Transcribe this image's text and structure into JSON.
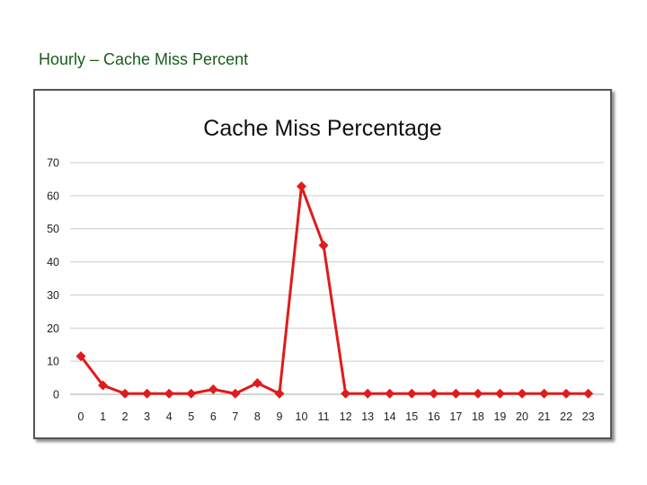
{
  "slide": {
    "title": "Hourly – Cache Miss Percent"
  },
  "colors": {
    "series": "#e01b1b",
    "grid": "#cccccc",
    "title_green": "#1a5c1a"
  },
  "chart_data": {
    "type": "line",
    "title": "Cache Miss Percentage",
    "xlabel": "",
    "ylabel": "",
    "x": [
      0,
      1,
      2,
      3,
      4,
      5,
      6,
      7,
      8,
      9,
      10,
      11,
      12,
      13,
      14,
      15,
      16,
      17,
      18,
      19,
      20,
      21,
      22,
      23
    ],
    "categories": [
      "0",
      "1",
      "2",
      "3",
      "4",
      "5",
      "6",
      "7",
      "8",
      "9",
      "10",
      "11",
      "12",
      "13",
      "14",
      "15",
      "16",
      "17",
      "18",
      "19",
      "20",
      "21",
      "22",
      "23"
    ],
    "series": [
      {
        "values": [
          11.5,
          2.7,
          0.2,
          0.2,
          0.2,
          0.2,
          1.5,
          0.2,
          3.4,
          0.2,
          62.8,
          45.0,
          0.2,
          0.2,
          0.2,
          0.2,
          0.2,
          0.2,
          0.2,
          0.2,
          0.2,
          0.2,
          0.2,
          0.2
        ]
      }
    ],
    "ylim": [
      0,
      70
    ],
    "yticks": [
      "0",
      "10",
      "20",
      "30",
      "40",
      "50",
      "60",
      "70"
    ],
    "grid": true,
    "legend": "none",
    "marker": "diamond"
  }
}
